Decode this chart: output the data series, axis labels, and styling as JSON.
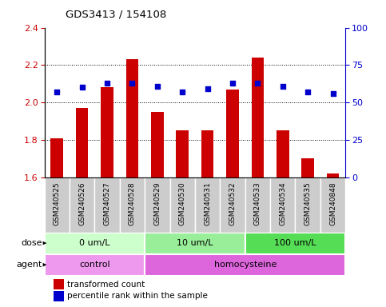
{
  "title": "GDS3413 / 154108",
  "samples": [
    "GSM240525",
    "GSM240526",
    "GSM240527",
    "GSM240528",
    "GSM240529",
    "GSM240530",
    "GSM240531",
    "GSM240532",
    "GSM240533",
    "GSM240534",
    "GSM240535",
    "GSM240848"
  ],
  "bar_values": [
    1.81,
    1.97,
    2.08,
    2.23,
    1.95,
    1.85,
    1.85,
    2.07,
    2.24,
    1.85,
    1.7,
    1.62
  ],
  "dot_values": [
    57,
    60,
    63,
    63,
    61,
    57,
    59,
    63,
    63,
    61,
    57,
    56
  ],
  "ylim_left": [
    1.6,
    2.4
  ],
  "ylim_right": [
    0,
    100
  ],
  "yticks_left": [
    1.6,
    1.8,
    2.0,
    2.2,
    2.4
  ],
  "yticks_right": [
    0,
    25,
    50,
    75,
    100
  ],
  "bar_color": "#cc0000",
  "dot_color": "#0000cc",
  "dot_size": 25,
  "grid_yticks": [
    1.8,
    2.0,
    2.2
  ],
  "dose_groups": [
    {
      "label": "0 um/L",
      "start": 0,
      "end": 4,
      "color": "#ccffcc"
    },
    {
      "label": "10 um/L",
      "start": 4,
      "end": 8,
      "color": "#99ee99"
    },
    {
      "label": "100 um/L",
      "start": 8,
      "end": 12,
      "color": "#55dd55"
    }
  ],
  "agent_groups": [
    {
      "label": "control",
      "start": 0,
      "end": 4,
      "color": "#ee99ee"
    },
    {
      "label": "homocysteine",
      "start": 4,
      "end": 12,
      "color": "#dd66dd"
    }
  ],
  "dose_label": "dose",
  "agent_label": "agent",
  "legend_bar_label": "transformed count",
  "legend_dot_label": "percentile rank within the sample",
  "tick_bg_color": "#cccccc",
  "tick_bg_edge": "#aaaaaa",
  "plot_bg": "#ffffff"
}
